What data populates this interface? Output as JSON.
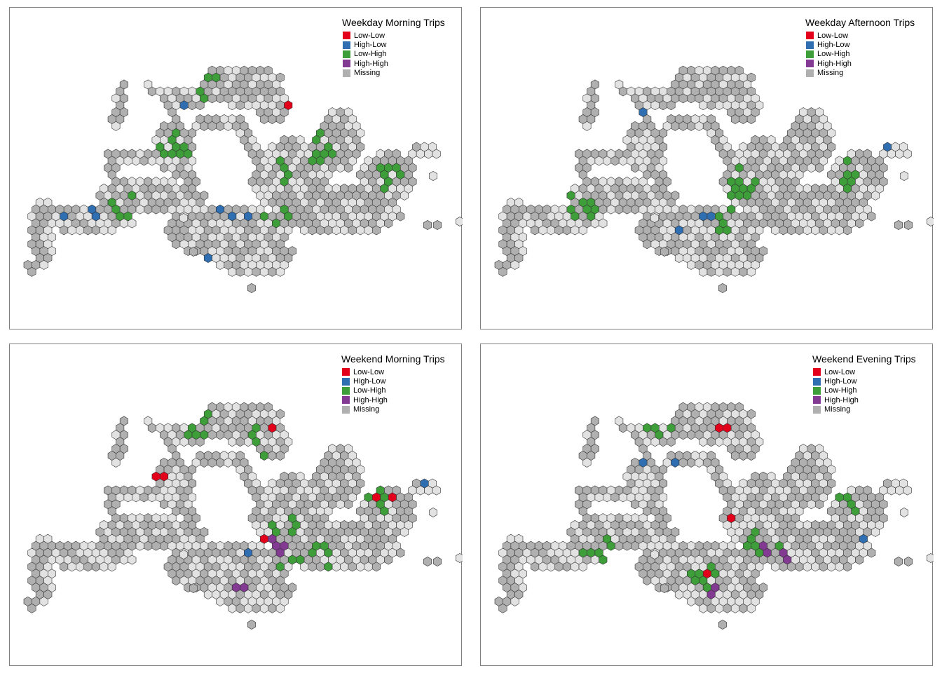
{
  "legend_colors": {
    "low_low": "#e3001b",
    "high_low": "#2f6eb0",
    "low_high": "#3e9f3a",
    "high_high": "#833a93",
    "missing": "#b0b0b0"
  },
  "hex_fill_light": "#e2e2e2",
  "hex_stroke": "#333333",
  "panels": [
    {
      "title": "Weekday Morning Trips",
      "legend": [
        "Low-Low",
        "High-Low",
        "Low-High",
        "High-High",
        "Missing"
      ]
    },
    {
      "title": "Weekday Afternoon Trips",
      "legend": [
        "Low-Low",
        "High-Low",
        "Low-High",
        "High-High",
        "Missing"
      ]
    },
    {
      "title": "Weekend Morning Trips",
      "legend": [
        "Low-Low",
        "High-Low",
        "Low-High",
        "High-High",
        "Missing"
      ]
    },
    {
      "title": "Weekend Evening Trips",
      "legend": [
        "Low-Low",
        "High-Low",
        "Low-High",
        "High-High",
        "Missing"
      ]
    }
  ]
}
